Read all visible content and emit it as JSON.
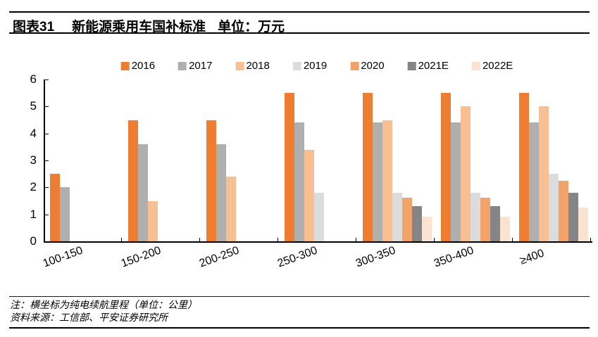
{
  "header": {
    "label": "图表31",
    "title": "新能源乘用车国补标准",
    "unit": "单位：万元"
  },
  "chart_data": {
    "type": "bar",
    "title": "新能源乘用车国补标准",
    "unit": "万元",
    "categories": [
      "100-150",
      "150-200",
      "200-250",
      "250-300",
      "300-350",
      "350-400",
      "≥400"
    ],
    "series": [
      {
        "name": "2016",
        "color": "#ED7D31",
        "values": [
          2.5,
          4.5,
          4.5,
          5.5,
          5.5,
          5.5,
          5.5
        ]
      },
      {
        "name": "2017",
        "color": "#AFAFAF",
        "values": [
          2.0,
          3.6,
          3.6,
          4.4,
          4.4,
          4.4,
          4.4
        ]
      },
      {
        "name": "2018",
        "color": "#F7BF92",
        "values": [
          null,
          1.5,
          2.4,
          3.4,
          4.5,
          5.0,
          5.0
        ]
      },
      {
        "name": "2019",
        "color": "#DCDCDC",
        "values": [
          null,
          null,
          null,
          1.8,
          1.8,
          1.8,
          2.5
        ]
      },
      {
        "name": "2020",
        "color": "#F2A369",
        "values": [
          null,
          null,
          null,
          null,
          1.62,
          1.62,
          2.25
        ]
      },
      {
        "name": "2021E",
        "color": "#858585",
        "values": [
          null,
          null,
          null,
          null,
          1.3,
          1.3,
          1.8
        ]
      },
      {
        "name": "2022E",
        "color": "#FBE3D2",
        "values": [
          null,
          null,
          null,
          null,
          0.91,
          0.91,
          1.26
        ]
      }
    ],
    "ylim": [
      0,
      6
    ],
    "yticks": [
      0,
      1,
      2,
      3,
      4,
      5,
      6
    ],
    "grid": false,
    "legend_position": "top",
    "xlabel": "",
    "ylabel": ""
  },
  "footer": {
    "note": "注：横坐标为纯电续航里程（单位：公里）",
    "source": "资料来源：工信部、平安证券研究所"
  }
}
